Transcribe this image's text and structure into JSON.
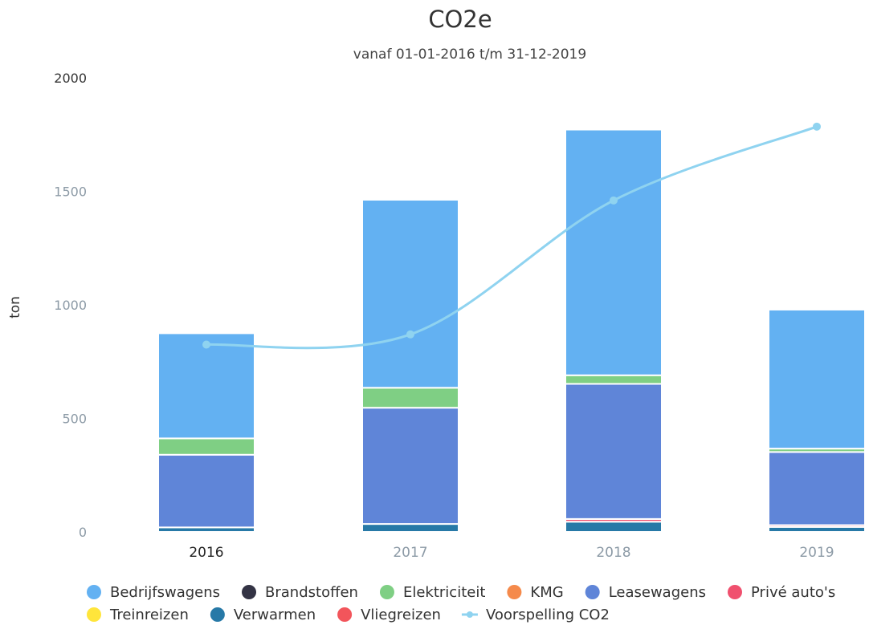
{
  "chart_data": {
    "type": "bar",
    "stacked": true,
    "title": "CO2e",
    "subtitle": "vanaf 01-01-2016 t/m 31-12-2019",
    "ylabel": "ton",
    "xlabel": "",
    "ylim": [
      0,
      2000
    ],
    "yticks": [
      0,
      500,
      1000,
      1500,
      2000
    ],
    "grid": false,
    "legend_position": "bottom",
    "categories": [
      "2016",
      "2017",
      "2018",
      "2019"
    ],
    "series": [
      {
        "name": "Verwarmen",
        "color": "#2779a7",
        "values": [
          20,
          35,
          45,
          22
        ]
      },
      {
        "name": "Privé auto's",
        "color": "#f0506e",
        "values": [
          0,
          0,
          12,
          8
        ]
      },
      {
        "name": "Vliegreizen",
        "color": "#f2555b",
        "values": [
          0,
          0,
          0,
          0
        ]
      },
      {
        "name": "Treinreizen",
        "color": "#ffe53b",
        "values": [
          0,
          0,
          0,
          0
        ]
      },
      {
        "name": "Brandstoffen",
        "color": "#333344",
        "values": [
          0,
          0,
          0,
          0
        ]
      },
      {
        "name": "KMG",
        "color": "#f58a4b",
        "values": [
          0,
          0,
          0,
          0
        ]
      },
      {
        "name": "Leasewagens",
        "color": "#5f85d8",
        "values": [
          320,
          512,
          595,
          322
        ]
      },
      {
        "name": "Elektriciteit",
        "color": "#7fcf84",
        "values": [
          72,
          88,
          38,
          15
        ]
      },
      {
        "name": "Bedrijfswagens",
        "color": "#63b1f2",
        "values": [
          463,
          828,
          1082,
          612
        ]
      }
    ],
    "line": {
      "name": "Voorspelling CO2",
      "color": "#8fd3f0",
      "values": [
        825,
        870,
        1460,
        1785
      ]
    },
    "legend": [
      {
        "name": "Bedrijfswagens",
        "color": "#63b1f2",
        "marker": "dot"
      },
      {
        "name": "Brandstoffen",
        "color": "#333344",
        "marker": "dot"
      },
      {
        "name": "Elektriciteit",
        "color": "#7fcf84",
        "marker": "dot"
      },
      {
        "name": "KMG",
        "color": "#f58a4b",
        "marker": "dot"
      },
      {
        "name": "Leasewagens",
        "color": "#5f85d8",
        "marker": "dot"
      },
      {
        "name": "Privé auto's",
        "color": "#f0506e",
        "marker": "dot"
      },
      {
        "name": "Treinreizen",
        "color": "#ffe53b",
        "marker": "dot"
      },
      {
        "name": "Verwarmen",
        "color": "#2779a7",
        "marker": "dot"
      },
      {
        "name": "Vliegreizen",
        "color": "#f2555b",
        "marker": "dot"
      },
      {
        "name": "Voorspelling CO2",
        "color": "#8fd3f0",
        "marker": "line"
      }
    ]
  }
}
